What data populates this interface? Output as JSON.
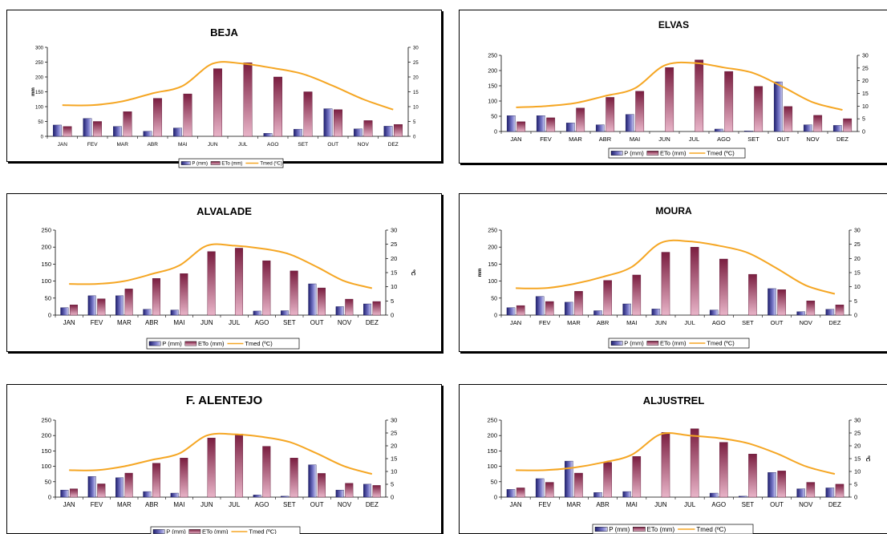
{
  "colors": {
    "p": "#3a3a8c",
    "eto": "#8c2a4c",
    "tmed": "#f5a623",
    "axis": "#000000"
  },
  "legend": {
    "p": "P (mm)",
    "eto": "ETo (mm)",
    "tmed": "Tmed (ºC)"
  },
  "chart_data": [
    {
      "type": "bar",
      "title": "BEJA",
      "categories": [
        "JAN",
        "FEV",
        "MAR",
        "ABR",
        "MAI",
        "JUN",
        "JUL",
        "AGO",
        "SET",
        "OUT",
        "NOV",
        "DEZ"
      ],
      "ylabel": "mm",
      "y2label": "",
      "ylim": [
        0,
        300
      ],
      "yticks": [
        0,
        50,
        100,
        150,
        200,
        250,
        300
      ],
      "y2lim": [
        0,
        30
      ],
      "y2ticks": [
        0,
        5,
        10,
        15,
        20,
        25,
        30
      ],
      "series": [
        {
          "name": "P (mm)",
          "values": [
            38,
            60,
            33,
            17,
            28,
            0,
            0,
            10,
            24,
            93,
            25,
            34
          ]
        },
        {
          "name": "ETo (mm)",
          "values": [
            33,
            50,
            83,
            128,
            143,
            228,
            248,
            200,
            150,
            90,
            53,
            40
          ]
        },
        {
          "name": "Tmed (ºC)",
          "values": [
            10.5,
            10.5,
            11.8,
            14.5,
            17,
            24.5,
            24.5,
            23,
            21,
            17,
            12.5,
            9
          ]
        }
      ]
    },
    {
      "type": "bar",
      "title": "ELVAS",
      "categories": [
        "JAN",
        "FEV",
        "MAR",
        "ABR",
        "MAI",
        "JUN",
        "JUL",
        "AGO",
        "SET",
        "OUT",
        "NOV",
        "DEZ"
      ],
      "ylabel": "",
      "y2label": "",
      "ylim": [
        0,
        250
      ],
      "yticks": [
        0,
        50,
        100,
        150,
        200,
        250
      ],
      "y2lim": [
        0,
        30
      ],
      "y2ticks": [
        0,
        5,
        10,
        15,
        20,
        25,
        30
      ],
      "series": [
        {
          "name": "P (mm)",
          "values": [
            52,
            52,
            28,
            22,
            56,
            0,
            0,
            8,
            2,
            163,
            22,
            20
          ]
        },
        {
          "name": "ETo (mm)",
          "values": [
            32,
            45,
            77,
            112,
            132,
            210,
            235,
            197,
            148,
            82,
            53,
            42
          ]
        },
        {
          "name": "Tmed (ºC)",
          "values": [
            9.5,
            10,
            11.2,
            14,
            17,
            26,
            27,
            25.2,
            23,
            17.5,
            11.5,
            8.5
          ]
        }
      ]
    },
    {
      "type": "bar",
      "title": "ALVALADE",
      "categories": [
        "JAN",
        "FEV",
        "MAR",
        "ABR",
        "MAI",
        "JUN",
        "JUL",
        "AGO",
        "SET",
        "OUT",
        "NOV",
        "DEZ"
      ],
      "ylabel": "",
      "y2label": "ºC",
      "ylim": [
        0,
        250
      ],
      "yticks": [
        0,
        50,
        100,
        150,
        200,
        250
      ],
      "y2lim": [
        0,
        30
      ],
      "y2ticks": [
        0,
        5,
        10,
        15,
        20,
        25,
        30
      ],
      "series": [
        {
          "name": "P (mm)",
          "values": [
            22,
            57,
            57,
            17,
            15,
            0,
            0,
            12,
            13,
            92,
            25,
            33
          ]
        },
        {
          "name": "ETo (mm)",
          "values": [
            30,
            48,
            77,
            108,
            122,
            187,
            197,
            160,
            130,
            80,
            47,
            40
          ]
        },
        {
          "name": "Tmed (ºC)",
          "values": [
            11,
            11,
            12,
            14.5,
            17.5,
            24.5,
            24.5,
            23.5,
            21.5,
            17,
            12,
            9.5
          ]
        }
      ]
    },
    {
      "type": "bar",
      "title": "MOURA",
      "categories": [
        "JAN",
        "FEV",
        "MAR",
        "ABR",
        "MAI",
        "JUN",
        "JUL",
        "AGO",
        "SET",
        "OUT",
        "NOV",
        "DEZ"
      ],
      "ylabel": "mm",
      "y2label": "",
      "ylim": [
        0,
        250
      ],
      "yticks": [
        0,
        50,
        100,
        150,
        200,
        250
      ],
      "y2lim": [
        0,
        30
      ],
      "y2ticks": [
        0,
        5,
        10,
        15,
        20,
        25,
        30
      ],
      "series": [
        {
          "name": "P (mm)",
          "values": [
            22,
            55,
            38,
            13,
            33,
            18,
            0,
            15,
            0,
            78,
            10,
            17
          ]
        },
        {
          "name": "ETo (mm)",
          "values": [
            28,
            40,
            70,
            102,
            118,
            185,
            200,
            165,
            120,
            75,
            42,
            30
          ]
        },
        {
          "name": "Tmed (ºC)",
          "values": [
            9.5,
            9.5,
            11,
            13.5,
            17,
            25.5,
            26,
            24.5,
            22,
            16.5,
            10.5,
            7.5
          ]
        }
      ]
    },
    {
      "type": "bar",
      "title": "F. ALENTEJO",
      "categories": [
        "JAN",
        "FEV",
        "MAR",
        "ABR",
        "MAI",
        "JUN",
        "JUL",
        "AGO",
        "SET",
        "OUT",
        "NOV",
        "DEZ"
      ],
      "ylabel": "",
      "y2label": "",
      "ylim": [
        0,
        250
      ],
      "yticks": [
        0,
        50,
        100,
        150,
        200,
        250
      ],
      "y2lim": [
        0,
        30
      ],
      "y2ticks": [
        0,
        5,
        10,
        15,
        20,
        25,
        30
      ],
      "series": [
        {
          "name": "P (mm)",
          "values": [
            23,
            67,
            63,
            18,
            13,
            0,
            0,
            7,
            3,
            105,
            23,
            42
          ]
        },
        {
          "name": "ETo (mm)",
          "values": [
            27,
            43,
            78,
            110,
            127,
            192,
            205,
            165,
            127,
            77,
            45,
            38
          ]
        },
        {
          "name": "Tmed (ºC)",
          "values": [
            10.5,
            10.5,
            12,
            14.5,
            17,
            24,
            24.5,
            23.5,
            21.5,
            17,
            12,
            9
          ]
        }
      ]
    },
    {
      "type": "bar",
      "title": "ALJUSTREL",
      "categories": [
        "JAN",
        "FEV",
        "MAR",
        "ABR",
        "MAI",
        "JUN",
        "JUL",
        "AGO",
        "SET",
        "OUT",
        "NOV",
        "DEZ"
      ],
      "ylabel": "",
      "y2label": "ºC",
      "ylim": [
        0,
        250
      ],
      "yticks": [
        0,
        50,
        100,
        150,
        200,
        250
      ],
      "y2lim": [
        0,
        30
      ],
      "y2ticks": [
        0,
        5,
        10,
        15,
        20,
        25,
        30
      ],
      "series": [
        {
          "name": "P (mm)",
          "values": [
            25,
            60,
            117,
            15,
            18,
            0,
            0,
            13,
            3,
            80,
            27,
            30
          ]
        },
        {
          "name": "ETo (mm)",
          "values": [
            30,
            48,
            78,
            113,
            132,
            210,
            222,
            178,
            140,
            85,
            48,
            42
          ]
        },
        {
          "name": "Tmed (ºC)",
          "values": [
            10.5,
            10.5,
            11.5,
            13.5,
            16.5,
            24.5,
            24,
            23,
            21,
            17,
            12,
            9
          ]
        }
      ]
    }
  ]
}
